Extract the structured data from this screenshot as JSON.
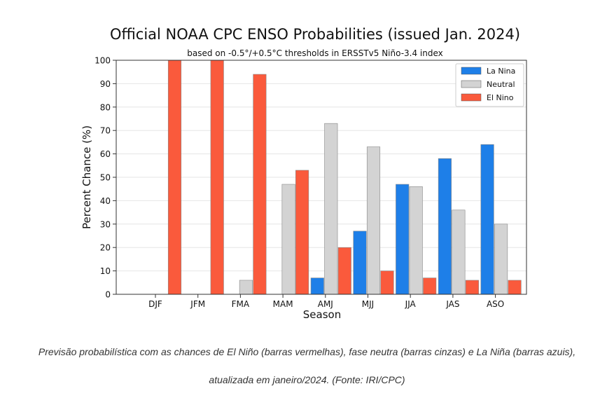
{
  "chart_data": {
    "type": "bar",
    "title": "Official NOAA CPC ENSO Probabilities (issued Jan. 2024)",
    "subtitle": "based on -0.5°/+0.5°C thresholds in ERSSTv5 Niño-3.4 index",
    "xlabel": "Season",
    "ylabel": "Percent Chance (%)",
    "ylim": [
      0,
      100
    ],
    "yticks": [
      "0",
      "10",
      "20",
      "30",
      "40",
      "50",
      "60",
      "70",
      "80",
      "90",
      "100"
    ],
    "categories": [
      "DJF",
      "JFM",
      "FMA",
      "MAM",
      "AMJ",
      "MJJ",
      "JJA",
      "JAS",
      "ASO"
    ],
    "grid": "horizontal",
    "legend_position": "top-right",
    "series": [
      {
        "name": "La Nina",
        "color": "#1e7fe8",
        "values": [
          0,
          0,
          0,
          0,
          7,
          27,
          47,
          58,
          64
        ]
      },
      {
        "name": "Neutral",
        "color": "#d3d3d3",
        "values": [
          0,
          0,
          6,
          47,
          73,
          63,
          46,
          36,
          30
        ]
      },
      {
        "name": "El Nino",
        "color": "#fa5a3c",
        "values": [
          100,
          100,
          94,
          53,
          20,
          10,
          7,
          6,
          6
        ]
      }
    ]
  },
  "caption": {
    "line1": "Previsão probabilística com as chances de El Niño (barras vermelhas), fase neutra (barras cinzas) e La Niña (barras azuis),",
    "line2": "atualizada em janeiro/2024. (Fonte: IRI/CPC)"
  }
}
